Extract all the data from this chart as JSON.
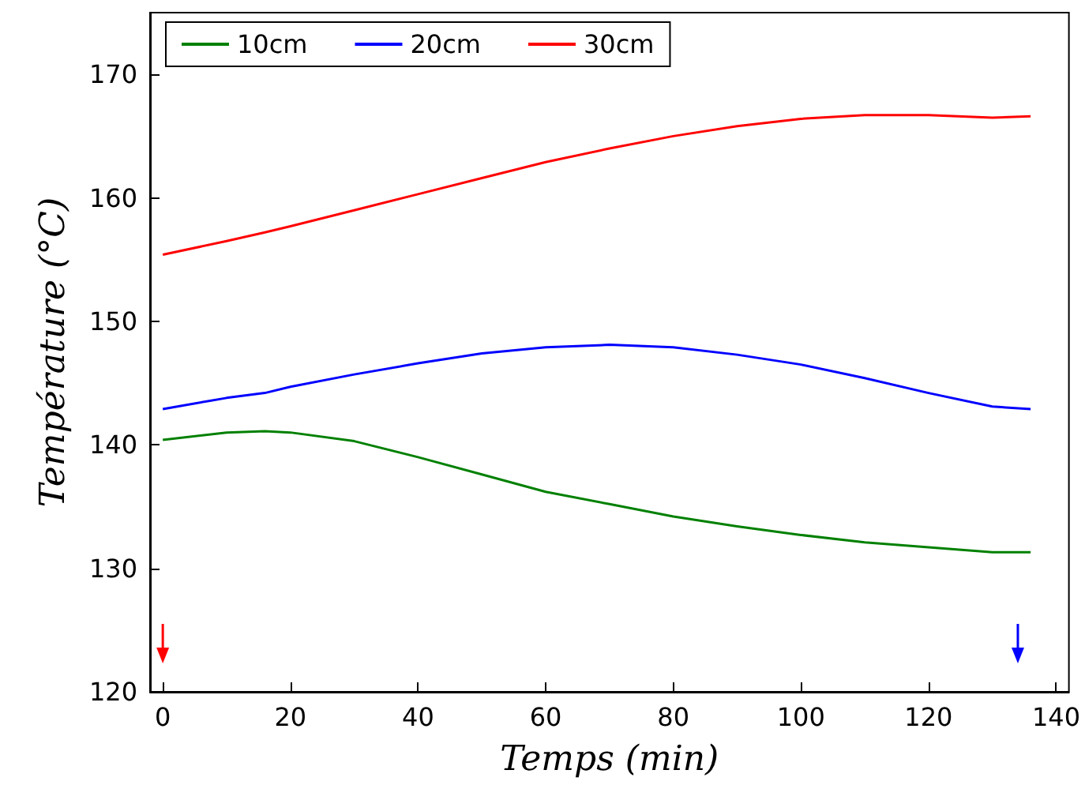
{
  "chart_data": {
    "type": "line",
    "xlabel": "Temps (min)",
    "ylabel": "Température (°C)",
    "x": [
      0,
      10,
      16,
      20,
      30,
      40,
      50,
      60,
      70,
      80,
      90,
      100,
      110,
      120,
      130,
      136
    ],
    "series": [
      {
        "name": "10cm",
        "color": "#008000",
        "values": [
          140.4,
          141.0,
          141.1,
          141.0,
          140.3,
          139.0,
          137.6,
          136.2,
          135.2,
          134.2,
          133.4,
          132.7,
          132.1,
          131.7,
          131.3,
          131.3
        ]
      },
      {
        "name": "20cm",
        "color": "#0000ff",
        "values": [
          142.9,
          143.8,
          144.2,
          144.7,
          145.7,
          146.6,
          147.4,
          147.9,
          148.1,
          147.9,
          147.3,
          146.5,
          145.4,
          144.2,
          143.1,
          142.9
        ]
      },
      {
        "name": "30cm",
        "color": "#ff0000",
        "values": [
          155.4,
          156.5,
          157.2,
          157.7,
          159.0,
          160.3,
          161.6,
          162.9,
          164.0,
          165.0,
          165.8,
          166.4,
          166.7,
          166.7,
          166.5,
          166.6
        ]
      }
    ],
    "xlim": [
      -2,
      142
    ],
    "xticks": [
      0,
      20,
      40,
      60,
      80,
      100,
      120,
      140
    ],
    "ylim": [
      120,
      175
    ],
    "yticks": [
      120,
      130,
      140,
      150,
      160,
      170
    ],
    "grid": false,
    "legend": "top left",
    "marker": "none",
    "line_style": "solid"
  }
}
